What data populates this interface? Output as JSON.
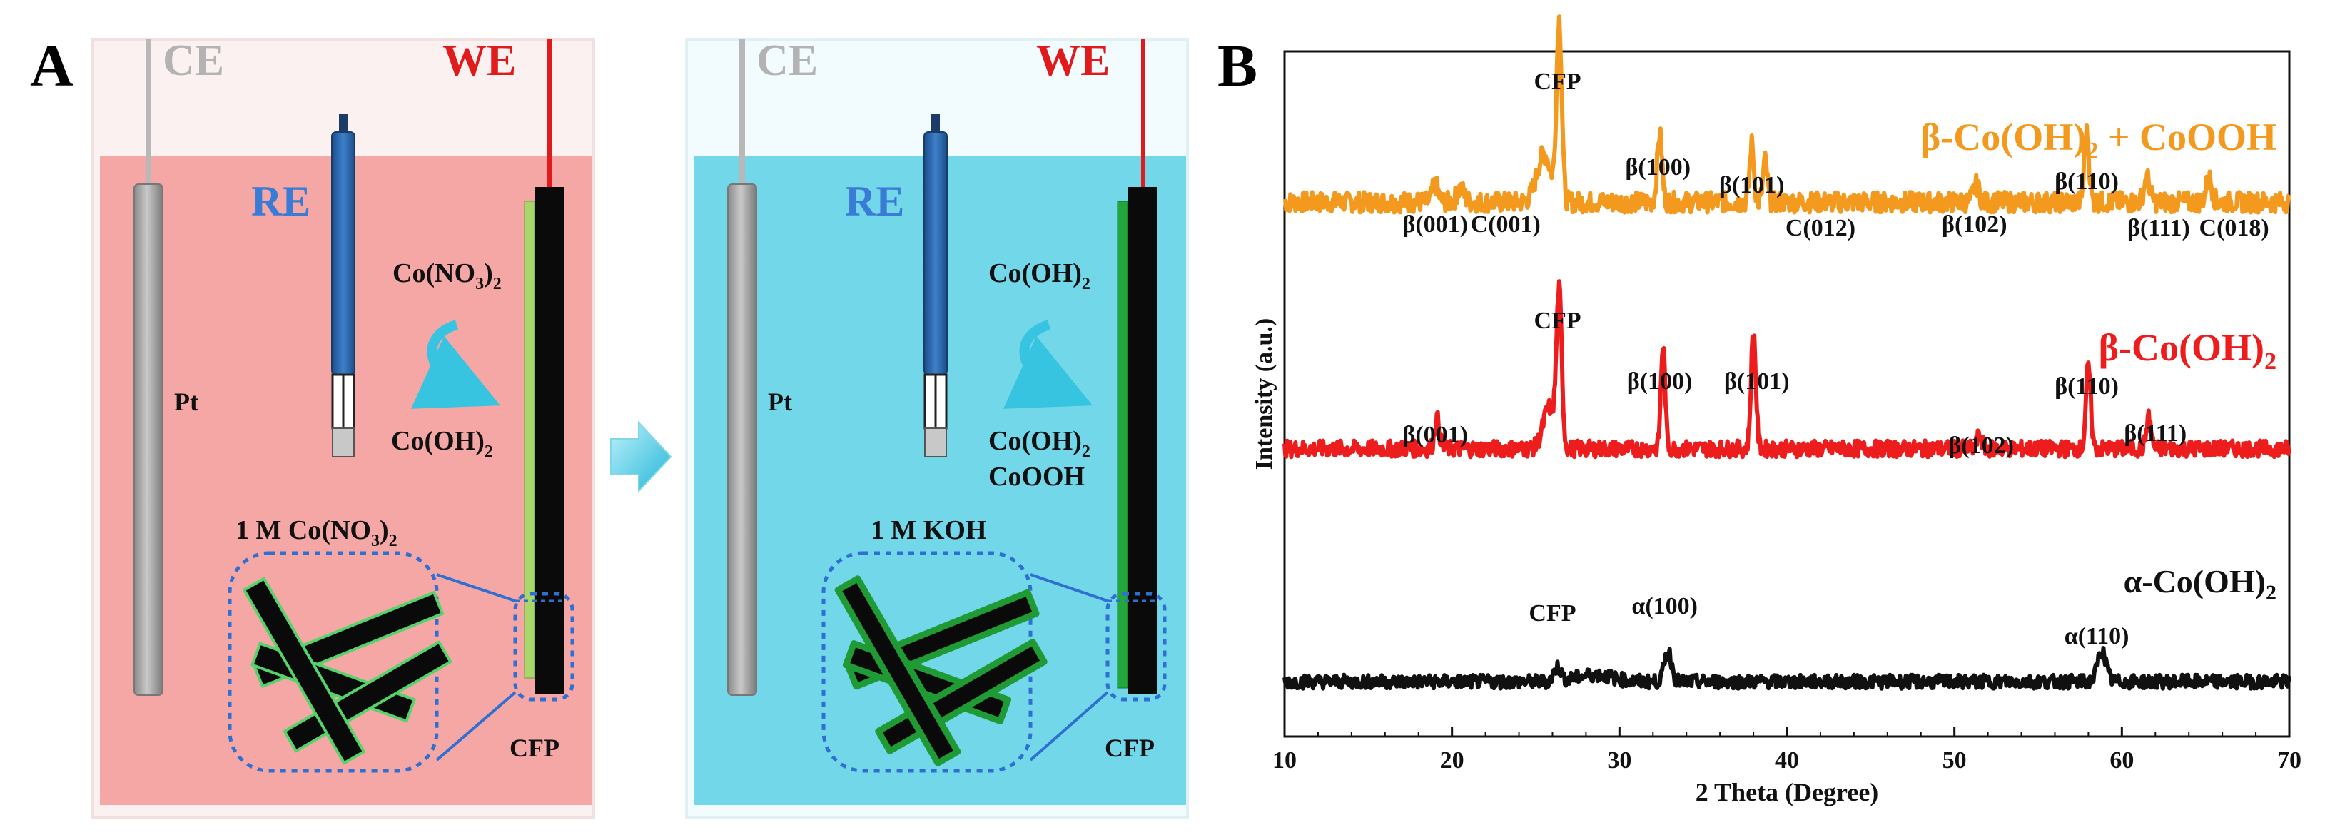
{
  "panel_a": {
    "label": "A",
    "cell1": {
      "ce": "CE",
      "we": "WE",
      "re": "RE",
      "pt": "Pt",
      "reaction_from": "Co(NO",
      "reaction_from_sub": "3",
      "reaction_from_end": ")",
      "reaction_from_sub2": "2",
      "reaction_to": "Co(OH)",
      "reaction_to_sub": "2",
      "electrolyte": "1 M Co(NO",
      "electrolyte_sub": "3",
      "electrolyte_end": ")",
      "electrolyte_sub2": "2",
      "cfp": "CFP",
      "electrolyte_color": "#f4a7a4",
      "coating_color": "#a8d86a"
    },
    "cell2": {
      "ce": "CE",
      "we": "WE",
      "re": "RE",
      "pt": "Pt",
      "reaction_from": "Co(OH)",
      "reaction_from_sub": "2",
      "reaction_to_1": "Co(OH)",
      "reaction_to_1_sub": "2",
      "reaction_to_2": "CoOOH",
      "electrolyte": "1 M KOH",
      "cfp": "CFP",
      "electrolyte_color": "#72d7e8",
      "coating_color": "#22a83a"
    }
  },
  "panel_b": {
    "label": "B",
    "ylabel": "Intensity (a.u.)",
    "xlabel": "2 Theta (Degree)",
    "xticks": [
      "10",
      "20",
      "30",
      "40",
      "50",
      "60",
      "70"
    ],
    "series_labels": {
      "top": "β-Co(OH)",
      "top_sub": "2",
      "top_tail": " + CoOOH",
      "mid": "β-Co(OH)",
      "mid_sub": "2",
      "bottom": "α-Co(OH)",
      "bottom_sub": "2"
    },
    "peak_labels": {
      "top": [
        {
          "text": "CFP",
          "x": 26.3
        },
        {
          "text": "β(001)",
          "x": 19.0
        },
        {
          "text": "C(001)",
          "x": 23.2
        },
        {
          "text": "β(100)",
          "x": 32.3
        },
        {
          "text": "β(101)",
          "x": 37.9
        },
        {
          "text": "C(012)",
          "x": 42.0
        },
        {
          "text": "β(102)",
          "x": 51.2
        },
        {
          "text": "β(110)",
          "x": 57.9
        },
        {
          "text": "β(111)",
          "x": 62.2
        },
        {
          "text": "C(018)",
          "x": 66.7
        }
      ],
      "mid": [
        {
          "text": "CFP",
          "x": 26.3
        },
        {
          "text": "β(001)",
          "x": 19.0
        },
        {
          "text": "β(100)",
          "x": 32.4
        },
        {
          "text": "β(101)",
          "x": 38.2
        },
        {
          "text": "β(102)",
          "x": 51.6
        },
        {
          "text": "β(110)",
          "x": 57.9
        },
        {
          "text": "β(111)",
          "x": 62.0
        }
      ],
      "bottom": [
        {
          "text": "CFP",
          "x": 26.0
        },
        {
          "text": "α(100)",
          "x": 32.7
        },
        {
          "text": "α(110)",
          "x": 58.5
        }
      ]
    },
    "colors": {
      "top": "#f39a1e",
      "mid": "#ee1d1d",
      "bottom": "#111111"
    }
  },
  "chart_data": {
    "type": "line",
    "title": "",
    "xlabel": "2 Theta (Degree)",
    "ylabel": "Intensity (a.u.)",
    "xlim": [
      10,
      70
    ],
    "grid": false,
    "series": [
      {
        "name": "β-Co(OH)2 + CoOOH",
        "color": "#f39a1e",
        "baseline": 0.78,
        "noise": 0.015,
        "peaks": [
          {
            "x": 19.0,
            "h": 0.025,
            "w": 0.25
          },
          {
            "x": 20.5,
            "h": 0.02,
            "w": 0.3
          },
          {
            "x": 25.5,
            "h": 0.07,
            "w": 0.6
          },
          {
            "x": 26.4,
            "h": 0.26,
            "w": 0.22
          },
          {
            "x": 32.4,
            "h": 0.1,
            "w": 0.2
          },
          {
            "x": 37.9,
            "h": 0.085,
            "w": 0.18
          },
          {
            "x": 38.7,
            "h": 0.06,
            "w": 0.18
          },
          {
            "x": 51.3,
            "h": 0.025,
            "w": 0.25
          },
          {
            "x": 57.9,
            "h": 0.1,
            "w": 0.2
          },
          {
            "x": 61.5,
            "h": 0.035,
            "w": 0.25
          },
          {
            "x": 65.2,
            "h": 0.035,
            "w": 0.25
          }
        ]
      },
      {
        "name": "β-Co(OH)2",
        "color": "#ee1d1d",
        "baseline": 0.42,
        "noise": 0.012,
        "peaks": [
          {
            "x": 19.1,
            "h": 0.045,
            "w": 0.2
          },
          {
            "x": 25.8,
            "h": 0.06,
            "w": 0.5
          },
          {
            "x": 26.4,
            "h": 0.22,
            "w": 0.22
          },
          {
            "x": 32.6,
            "h": 0.15,
            "w": 0.18
          },
          {
            "x": 38.0,
            "h": 0.17,
            "w": 0.2
          },
          {
            "x": 51.5,
            "h": 0.02,
            "w": 0.2
          },
          {
            "x": 58.0,
            "h": 0.12,
            "w": 0.2
          },
          {
            "x": 61.6,
            "h": 0.045,
            "w": 0.2
          }
        ]
      },
      {
        "name": "α-Co(OH)2",
        "color": "#111111",
        "baseline": 0.08,
        "noise": 0.01,
        "peaks": [
          {
            "x": 26.3,
            "h": 0.02,
            "w": 0.3
          },
          {
            "x": 28.5,
            "h": 0.01,
            "w": 1.5
          },
          {
            "x": 32.9,
            "h": 0.045,
            "w": 0.3
          },
          {
            "x": 58.8,
            "h": 0.045,
            "w": 0.35
          }
        ]
      }
    ]
  }
}
